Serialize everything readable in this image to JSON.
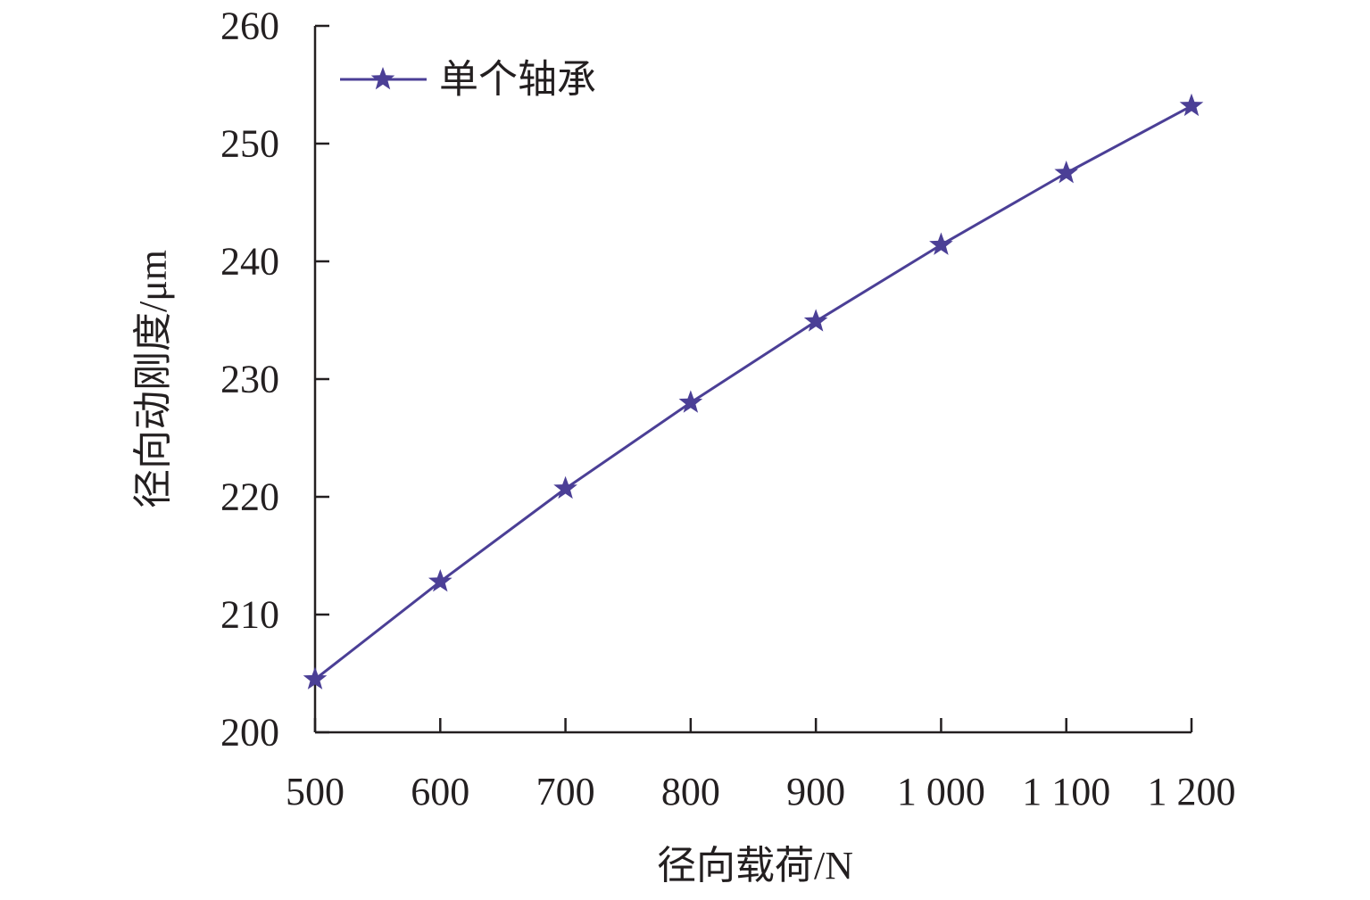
{
  "chart_data": {
    "type": "line",
    "title": "",
    "xlabel": "径向载荷/N",
    "ylabel": "径向动刚度/μm",
    "x": [
      500,
      600,
      700,
      800,
      900,
      1000,
      1100,
      1200
    ],
    "x_tick_labels": [
      "500",
      "600",
      "700",
      "800",
      "900",
      "1 000",
      "1 100",
      "1 200"
    ],
    "xlim": [
      500,
      1200
    ],
    "ylim": [
      200,
      260
    ],
    "y_ticks": [
      200,
      210,
      220,
      230,
      240,
      250,
      260
    ],
    "y_tick_labels": [
      "200",
      "210",
      "220",
      "230",
      "240",
      "250",
      "260"
    ],
    "grid": false,
    "legend_position": "top-left",
    "series": [
      {
        "name": "单个轴承",
        "color": "#4b3f96",
        "marker": "star",
        "values": [
          204.5,
          212.8,
          220.7,
          228.0,
          234.9,
          241.4,
          247.5,
          253.2
        ]
      }
    ]
  }
}
